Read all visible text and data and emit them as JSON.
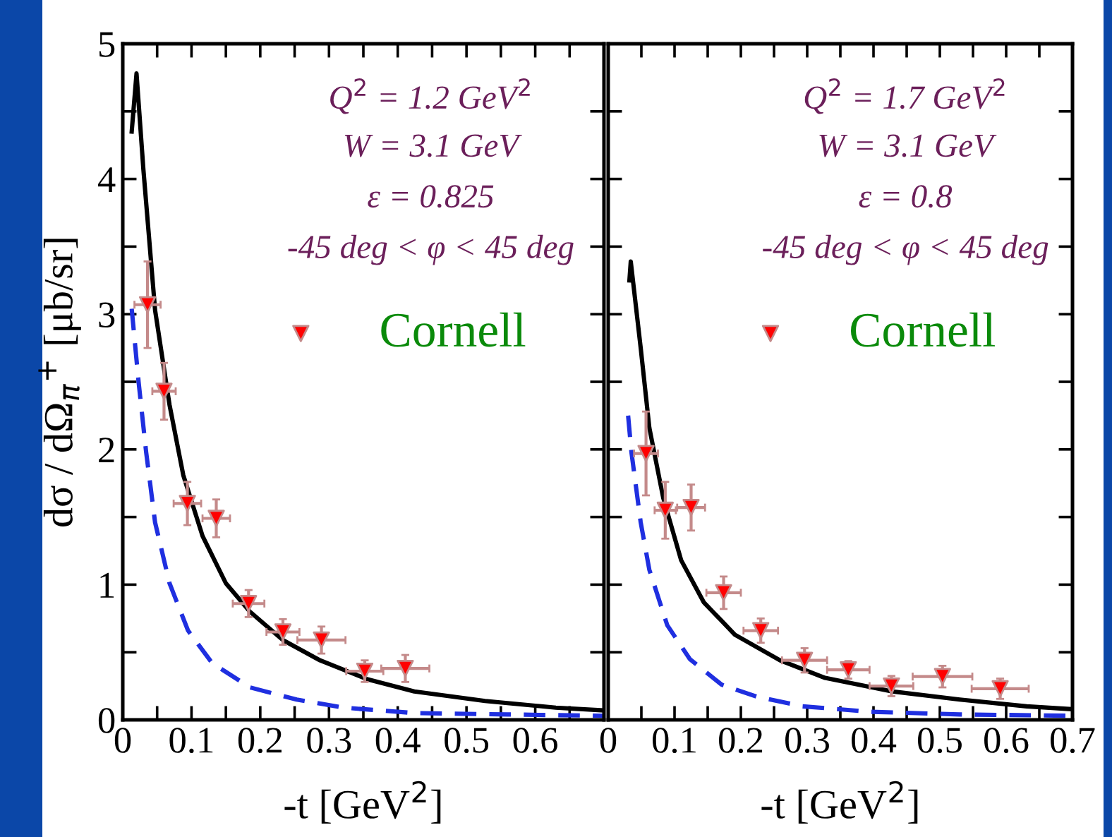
{
  "chart_data": [
    {
      "type": "scatter",
      "xlabel": "-t [GeV$^{2}$]",
      "ylabel": "dσ / dΩ$_{π}$$^{+}$ [μb/sr]",
      "annotations": [
        "Q$^{2}$ = 1.2 GeV$^{2}$",
        "W = 3.1 GeV",
        "ε = 0.825",
        "-45 deg < φ < 45 deg"
      ],
      "xlim": [
        0,
        0.7
      ],
      "xticks": [
        0,
        {
          "value": 0.05,
          "label": null
        },
        0.1,
        {
          "value": 0.15,
          "label": null
        },
        0.2,
        {
          "value": 0.25,
          "label": null
        },
        0.3,
        {
          "value": 0.35,
          "label": null
        },
        0.4,
        {
          "value": 0.45,
          "label": null
        },
        0.5,
        {
          "value": 0.55,
          "label": null
        },
        0.6,
        {
          "value": 0.65,
          "label": null
        }
      ],
      "ylim": [
        0,
        5
      ],
      "yticks": [
        0,
        {
          "value": 0.5,
          "label": null
        },
        1,
        {
          "value": 1.5,
          "label": null
        },
        2,
        {
          "value": 2.5,
          "label": null
        },
        3,
        {
          "value": 3.5,
          "label": null
        },
        4,
        {
          "value": 4.5,
          "label": null
        },
        5
      ],
      "legend": "right",
      "grid": false,
      "series": [
        {
          "type": "line",
          "color": "#000000",
          "line_style": "solid",
          "x": [
            0.013,
            0.02,
            0.03,
            0.047,
            0.068,
            0.088,
            0.116,
            0.15,
            0.185,
            0.233,
            0.287,
            0.356,
            0.424,
            0.527,
            0.63,
            0.7
          ],
          "values": [
            4.35,
            4.78,
            4.07,
            3.03,
            2.33,
            1.81,
            1.36,
            1.01,
            0.8,
            0.59,
            0.44,
            0.3,
            0.21,
            0.14,
            0.09,
            0.07
          ]
        },
        {
          "type": "line",
          "color": "#1f2fe0",
          "line_style": "dashed",
          "x": [
            0.013,
            0.023,
            0.034,
            0.047,
            0.068,
            0.095,
            0.13,
            0.185,
            0.253,
            0.322,
            0.424,
            0.56,
            0.7
          ],
          "values": [
            3.04,
            2.5,
            1.98,
            1.46,
            1.01,
            0.66,
            0.42,
            0.24,
            0.15,
            0.09,
            0.05,
            0.04,
            0.03
          ]
        },
        {
          "name": "Cornell",
          "color": "#ff0000",
          "marker": "triangle",
          "x": [
            0.036,
            0.06,
            0.094,
            0.136,
            0.183,
            0.233,
            0.289,
            0.352,
            0.411
          ],
          "values": [
            3.07,
            2.43,
            1.6,
            1.49,
            0.86,
            0.65,
            0.59,
            0.36,
            0.38
          ],
          "errors": [
            0.32,
            0.21,
            0.16,
            0.14,
            0.1,
            0.095,
            0.1,
            0.08,
            0.1
          ],
          "xerrors": [
            0.019,
            0.017,
            0.02,
            0.02,
            0.023,
            0.024,
            0.035,
            0.027,
            0.035
          ]
        }
      ]
    },
    {
      "type": "scatter",
      "xlabel": "-t [GeV$^{2}$]",
      "tick_labels": "x",
      "annotations": [
        "Q$^{2}$ = 1.7 GeV$^{2}$",
        "W = 3.1 GeV",
        "ε = 0.8",
        "-45 deg < φ < 45 deg"
      ],
      "xlim": [
        0,
        0.7
      ],
      "xticks": [
        0,
        {
          "value": 0.05,
          "label": null
        },
        0.1,
        {
          "value": 0.15,
          "label": null
        },
        0.2,
        {
          "value": 0.25,
          "label": null
        },
        0.3,
        {
          "value": 0.35,
          "label": null
        },
        0.4,
        {
          "value": 0.45,
          "label": null
        },
        0.5,
        {
          "value": 0.55,
          "label": null
        },
        0.6,
        {
          "value": 0.65,
          "label": null
        },
        0.7
      ],
      "ylim": [
        0,
        5
      ],
      "yticks": [
        0,
        {
          "value": 0.5,
          "label": null
        },
        1,
        {
          "value": 1.5,
          "label": null
        },
        2,
        {
          "value": 2.5,
          "label": null
        },
        3,
        {
          "value": 3.5,
          "label": null
        },
        4,
        {
          "value": 4.5,
          "label": null
        },
        5
      ],
      "legend": "right",
      "grid": false,
      "series": [
        {
          "type": "line",
          "color": "#000000",
          "line_style": "solid",
          "x": [
            0.032,
            0.034,
            0.049,
            0.062,
            0.083,
            0.11,
            0.144,
            0.191,
            0.259,
            0.327,
            0.428,
            0.53,
            0.631,
            0.696
          ],
          "values": [
            3.25,
            3.39,
            2.75,
            2.16,
            1.64,
            1.18,
            0.87,
            0.63,
            0.44,
            0.31,
            0.21,
            0.15,
            0.1,
            0.08
          ]
        },
        {
          "type": "line",
          "color": "#1f2fe0",
          "line_style": "dashed",
          "x": [
            0.03,
            0.035,
            0.049,
            0.062,
            0.089,
            0.123,
            0.171,
            0.225,
            0.293,
            0.394,
            0.53,
            0.7
          ],
          "values": [
            2.25,
            1.98,
            1.46,
            1.11,
            0.7,
            0.45,
            0.26,
            0.17,
            0.1,
            0.06,
            0.04,
            0.03
          ]
        },
        {
          "name": "Cornell",
          "color": "#ff0000",
          "marker": "triangle",
          "x": [
            0.057,
            0.086,
            0.125,
            0.174,
            0.23,
            0.296,
            0.362,
            0.427,
            0.504,
            0.591
          ],
          "values": [
            1.97,
            1.55,
            1.57,
            0.94,
            0.66,
            0.44,
            0.37,
            0.25,
            0.32,
            0.23
          ],
          "errors": [
            0.31,
            0.21,
            0.17,
            0.12,
            0.09,
            0.09,
            0.065,
            0.075,
            0.08,
            0.075
          ],
          "xerrors": [
            0.018,
            0.016,
            0.021,
            0.026,
            0.026,
            0.034,
            0.032,
            0.033,
            0.045,
            0.043
          ]
        }
      ]
    }
  ]
}
